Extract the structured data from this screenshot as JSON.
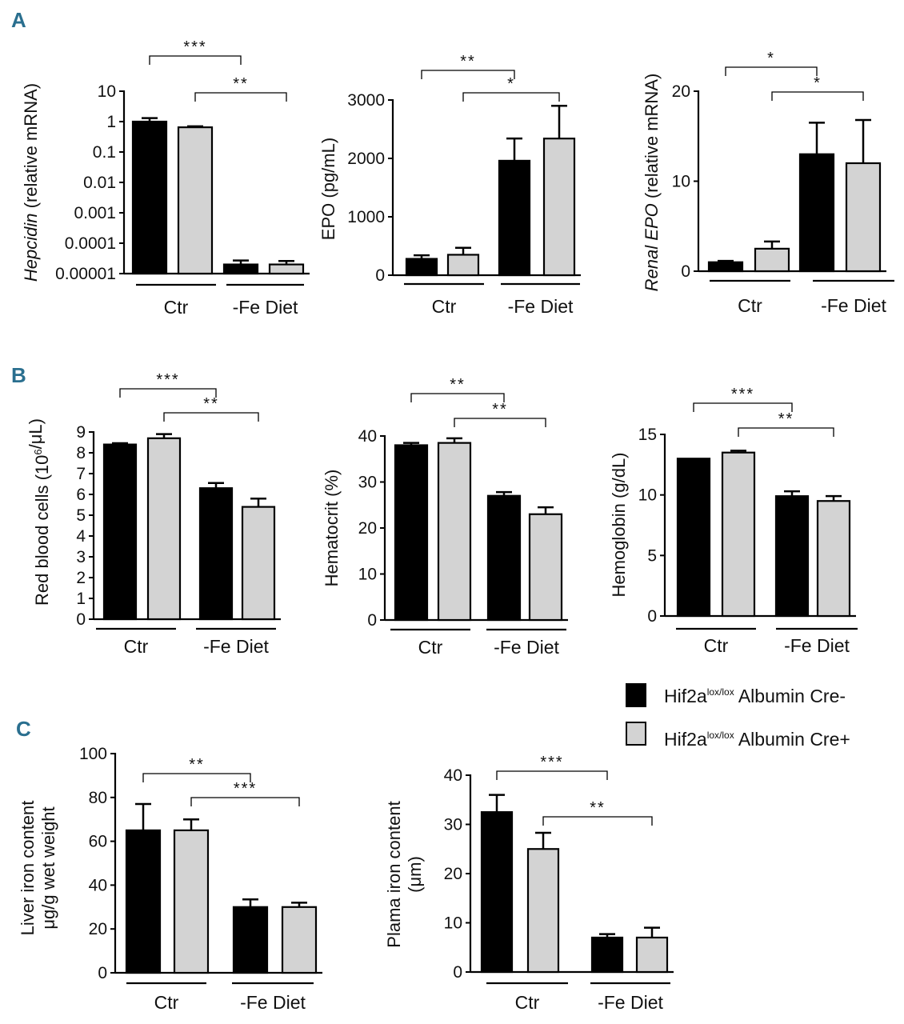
{
  "panel_labels": [
    "A",
    "B",
    "C"
  ],
  "colors": {
    "cre_minus": "#000000",
    "cre_plus": "#d3d3d3",
    "axis": "#000000"
  },
  "legend": [
    {
      "name": "Hif2a",
      "sup": "lox/lox",
      "rest": " Albumin Cre-",
      "color": "#000000"
    },
    {
      "name": "Hif2a",
      "sup": "lox/lox",
      "rest": " Albumin Cre+",
      "color": "#d3d3d3"
    }
  ],
  "chart_data": [
    {
      "id": "hepcidin",
      "panel": "A",
      "type": "bar",
      "scale": "log",
      "ylabel_parts": [
        {
          "text": "Hepcidin",
          "italic": true
        },
        {
          "text": " (relative mRNA)",
          "italic": false
        }
      ],
      "ylim": [
        1e-05,
        10
      ],
      "yticks": [
        10,
        1,
        0.1,
        0.01,
        0.001,
        0.0001,
        1e-05
      ],
      "ytick_labels": [
        "10",
        "1",
        "0.1",
        "0.01",
        "0.001",
        "0.0001",
        "0.00001"
      ],
      "groups": [
        "Ctr",
        "-Fe Diet"
      ],
      "series": [
        {
          "name": "Hif2a lox/lox Albumin Cre-",
          "values": [
            1.0,
            2e-05
          ],
          "errors": [
            0.3,
            7e-06
          ]
        },
        {
          "name": "Hif2a lox/lox Albumin Cre+",
          "values": [
            0.65,
            2e-05
          ],
          "errors": [
            0.05,
            6e-06
          ]
        }
      ],
      "significance": [
        {
          "from": 0,
          "to": 2,
          "label": "***"
        },
        {
          "from": 1,
          "to": 3,
          "label": "**"
        }
      ]
    },
    {
      "id": "epo",
      "panel": "A",
      "type": "bar",
      "scale": "linear",
      "ylabel_parts": [
        {
          "text": "EPO (pg/mL)",
          "italic": false
        }
      ],
      "ylim": [
        0,
        3000
      ],
      "yticks": [
        0,
        1000,
        2000,
        3000
      ],
      "ytick_labels": [
        "0",
        "1000",
        "2000",
        "3000"
      ],
      "groups": [
        "Ctr",
        "-Fe Diet"
      ],
      "series": [
        {
          "name": "Hif2a lox/lox Albumin Cre-",
          "values": [
            280,
            1960
          ],
          "errors": [
            60,
            380
          ]
        },
        {
          "name": "Hif2a lox/lox Albumin Cre+",
          "values": [
            350,
            2340
          ],
          "errors": [
            120,
            560
          ]
        }
      ],
      "significance": [
        {
          "from": 0,
          "to": 2,
          "label": "**"
        },
        {
          "from": 1,
          "to": 3,
          "label": "*"
        }
      ]
    },
    {
      "id": "renal_epo",
      "panel": "A",
      "type": "bar",
      "scale": "linear",
      "ylabel_parts": [
        {
          "text": "Renal EPO",
          "italic": true
        },
        {
          "text": " (relative mRNA)",
          "italic": false
        }
      ],
      "ylim": [
        0,
        20
      ],
      "yticks": [
        0,
        10,
        20
      ],
      "ytick_labels": [
        "0",
        "10",
        "20"
      ],
      "groups": [
        "Ctr",
        "-Fe Diet"
      ],
      "series": [
        {
          "name": "Hif2a lox/lox Albumin Cre-",
          "values": [
            1.0,
            13.0
          ],
          "errors": [
            0.15,
            3.5
          ]
        },
        {
          "name": "Hif2a lox/lox Albumin Cre+",
          "values": [
            2.5,
            12.0
          ],
          "errors": [
            0.8,
            4.8
          ]
        }
      ],
      "significance": [
        {
          "from": 0,
          "to": 2,
          "label": "*"
        },
        {
          "from": 1,
          "to": 3,
          "label": "*"
        }
      ]
    },
    {
      "id": "rbc",
      "panel": "B",
      "type": "bar",
      "scale": "linear",
      "ylabel_parts": [
        {
          "text": "Red blood cells (10",
          "italic": false
        },
        {
          "text": "6",
          "italic": false,
          "sup": true
        },
        {
          "text": "/μL)",
          "italic": false
        }
      ],
      "ylim": [
        0,
        9
      ],
      "yticks": [
        0,
        1,
        2,
        3,
        4,
        5,
        6,
        7,
        8,
        9
      ],
      "ytick_labels": [
        "0",
        "1",
        "2",
        "3",
        "4",
        "5",
        "6",
        "7",
        "8",
        "9"
      ],
      "groups": [
        "Ctr",
        "-Fe  Diet"
      ],
      "series": [
        {
          "name": "Hif2a lox/lox Albumin Cre-",
          "values": [
            8.4,
            6.3
          ],
          "errors": [
            0.06,
            0.25
          ]
        },
        {
          "name": "Hif2a lox/lox Albumin Cre+",
          "values": [
            8.7,
            5.4
          ],
          "errors": [
            0.2,
            0.4
          ]
        }
      ],
      "significance": [
        {
          "from": 0,
          "to": 2,
          "label": "***"
        },
        {
          "from": 1,
          "to": 3,
          "label": "**"
        }
      ]
    },
    {
      "id": "hematocrit",
      "panel": "B",
      "type": "bar",
      "scale": "linear",
      "ylabel_parts": [
        {
          "text": "Hematocrit (%)",
          "italic": false
        }
      ],
      "ylim": [
        0,
        40
      ],
      "yticks": [
        0,
        10,
        20,
        30,
        40
      ],
      "ytick_labels": [
        "0",
        "10",
        "20",
        "30",
        "40"
      ],
      "groups": [
        "Ctr",
        "-Fe Diet"
      ],
      "series": [
        {
          "name": "Hif2a lox/lox Albumin Cre-",
          "values": [
            38.0,
            27.0
          ],
          "errors": [
            0.5,
            0.8
          ]
        },
        {
          "name": "Hif2a lox/lox Albumin Cre+",
          "values": [
            38.5,
            23.0
          ],
          "errors": [
            1.0,
            1.5
          ]
        }
      ],
      "significance": [
        {
          "from": 0,
          "to": 2,
          "label": "**"
        },
        {
          "from": 1,
          "to": 3,
          "label": "**"
        }
      ]
    },
    {
      "id": "hemoglobin",
      "panel": "B",
      "type": "bar",
      "scale": "linear",
      "ylabel_parts": [
        {
          "text": "Hemoglobin (g/dL)",
          "italic": false
        }
      ],
      "ylim": [
        0,
        15
      ],
      "yticks": [
        0,
        5,
        10,
        15
      ],
      "ytick_labels": [
        "0",
        "5",
        "10",
        "15"
      ],
      "groups": [
        "Ctr",
        "-Fe Diet"
      ],
      "series": [
        {
          "name": "Hif2a lox/lox Albumin Cre-",
          "values": [
            13.0,
            9.9
          ],
          "errors": [
            0.0,
            0.4
          ]
        },
        {
          "name": "Hif2a lox/lox Albumin Cre+",
          "values": [
            13.5,
            9.5
          ],
          "errors": [
            0.15,
            0.4
          ]
        }
      ],
      "significance": [
        {
          "from": 0,
          "to": 2,
          "label": "***"
        },
        {
          "from": 1,
          "to": 3,
          "label": "**"
        }
      ]
    },
    {
      "id": "liver_iron",
      "panel": "C",
      "type": "bar",
      "scale": "linear",
      "ylabel_parts": [
        {
          "text": "Liver iron content",
          "italic": false
        }
      ],
      "ylabel_line2": "μg/g wet weight",
      "ylim": [
        0,
        100
      ],
      "yticks": [
        0,
        20,
        40,
        60,
        80,
        100
      ],
      "ytick_labels": [
        "0",
        "20",
        "40",
        "60",
        "80",
        "100"
      ],
      "groups": [
        "Ctr",
        "-Fe  Diet"
      ],
      "series": [
        {
          "name": "Hif2a lox/lox Albumin Cre-",
          "values": [
            65,
            30
          ],
          "errors": [
            12,
            3.5
          ]
        },
        {
          "name": "Hif2a lox/lox Albumin Cre+",
          "values": [
            65,
            30
          ],
          "errors": [
            5,
            2
          ]
        }
      ],
      "significance": [
        {
          "from": 0,
          "to": 2,
          "label": "**"
        },
        {
          "from": 1,
          "to": 3,
          "label": "***"
        }
      ]
    },
    {
      "id": "plasma_iron",
      "panel": "C",
      "type": "bar",
      "scale": "linear",
      "ylabel_parts": [
        {
          "text": "Plama iron content",
          "italic": false
        }
      ],
      "ylabel_line2": "(μm)",
      "ylim": [
        0,
        40
      ],
      "yticks": [
        0,
        10,
        20,
        30,
        40
      ],
      "ytick_labels": [
        "0",
        "10",
        "20",
        "30",
        "40"
      ],
      "groups": [
        "Ctr",
        "-Fe  Diet"
      ],
      "series": [
        {
          "name": "Hif2a lox/lox Albumin Cre-",
          "values": [
            32.5,
            7.0
          ],
          "errors": [
            3.5,
            0.7
          ]
        },
        {
          "name": "Hif2a lox/lox Albumin Cre+",
          "values": [
            25.0,
            7.0
          ],
          "errors": [
            3.3,
            2.0
          ]
        }
      ],
      "significance": [
        {
          "from": 0,
          "to": 2,
          "label": "***"
        },
        {
          "from": 1,
          "to": 3,
          "label": "**"
        }
      ]
    }
  ]
}
